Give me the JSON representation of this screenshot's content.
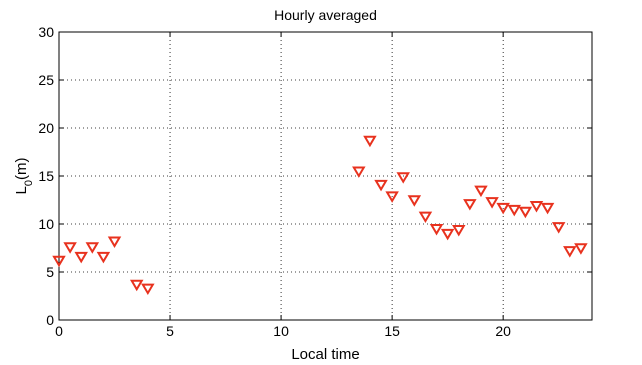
{
  "chart_data": {
    "type": "scatter",
    "title": "Hourly averaged",
    "xlabel": "Local time",
    "ylabel": {
      "main": "L",
      "sub": "0",
      "tail": "(m)"
    },
    "xlim": [
      0,
      24
    ],
    "ylim": [
      0,
      30
    ],
    "xticks": [
      0,
      5,
      10,
      15,
      20
    ],
    "yticks": [
      0,
      5,
      10,
      15,
      20,
      25,
      30
    ],
    "grid": true,
    "marker": "triangle-down",
    "marker_color": "#e8321e",
    "series": [
      {
        "points": [
          [
            0,
            6.2
          ],
          [
            0.5,
            7.6
          ],
          [
            1,
            6.6
          ],
          [
            1.5,
            7.6
          ],
          [
            2,
            6.6
          ],
          [
            2.5,
            8.2
          ],
          [
            3.5,
            3.7
          ],
          [
            4,
            3.3
          ],
          [
            13.5,
            15.5
          ],
          [
            14,
            18.7
          ],
          [
            14.5,
            14.1
          ],
          [
            15,
            12.9
          ],
          [
            15.5,
            14.9
          ],
          [
            16,
            12.5
          ],
          [
            16.5,
            10.8
          ],
          [
            17,
            9.5
          ],
          [
            17.5,
            9.0
          ],
          [
            18,
            9.4
          ],
          [
            18.5,
            12.1
          ],
          [
            19,
            13.5
          ],
          [
            19.5,
            12.3
          ],
          [
            20,
            11.7
          ],
          [
            20.5,
            11.5
          ],
          [
            21,
            11.3
          ],
          [
            21.5,
            11.9
          ],
          [
            22,
            11.7
          ],
          [
            22.5,
            9.7
          ],
          [
            23,
            7.2
          ],
          [
            23.5,
            7.5
          ]
        ]
      }
    ]
  }
}
